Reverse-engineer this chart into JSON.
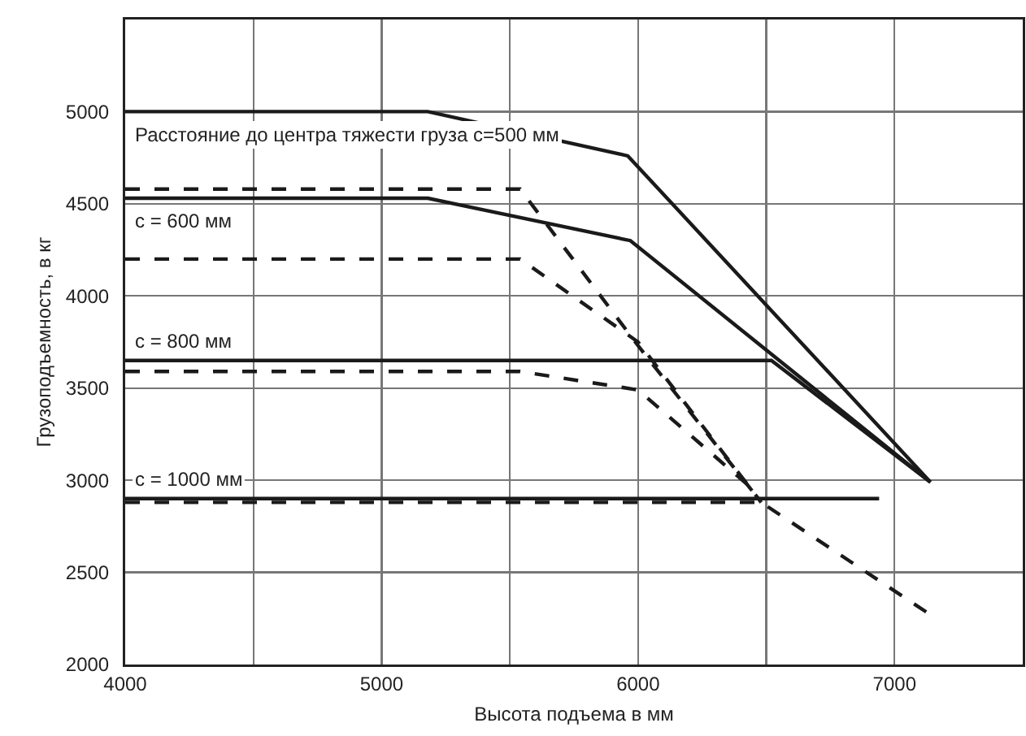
{
  "chart_data": {
    "type": "line",
    "xlabel": "Высота подъема в мм",
    "ylabel": "Грузоподъемность, в кг",
    "xlim": [
      4000,
      7500
    ],
    "ylim": [
      2000,
      5500
    ],
    "xticks": [
      4000,
      {
        "value": 4500,
        "label": null
      },
      5000,
      {
        "value": 5500,
        "label": null
      },
      6000,
      {
        "value": 6500,
        "label": null
      },
      7000
    ],
    "yticks": [
      2000,
      2500,
      3000,
      3500,
      4000,
      4500,
      5000,
      {
        "value": 5500,
        "label": null
      }
    ],
    "grid": true,
    "marker": "none",
    "series": [
      {
        "color": "#1a1a1a",
        "line_style": "solid",
        "x": [
          4000,
          5180,
          5960,
          7140
        ],
        "values": [
          5000,
          5000,
          4760,
          2990
        ]
      },
      {
        "color": "#1a1a1a",
        "line_style": "solid",
        "x": [
          4000,
          5180,
          5970,
          7140
        ],
        "values": [
          4530,
          4530,
          4300,
          2990
        ]
      },
      {
        "color": "#1a1a1a",
        "line_style": "solid",
        "x": [
          4000,
          6520,
          7140
        ],
        "values": [
          3650,
          3650,
          2990
        ]
      },
      {
        "color": "#1a1a1a",
        "line_style": "solid",
        "x": [
          4000,
          6940
        ],
        "values": [
          2900,
          2900
        ]
      },
      {
        "color": "#1a1a1a",
        "line_style": "dashed",
        "x": [
          4000,
          5540,
          6000,
          6480
        ],
        "values": [
          4580,
          4580,
          3730,
          2880
        ]
      },
      {
        "color": "#1a1a1a",
        "line_style": "dashed",
        "x": [
          4000,
          5540,
          6000,
          6480
        ],
        "values": [
          4200,
          4200,
          3750,
          2880
        ]
      },
      {
        "color": "#1a1a1a",
        "line_style": "dashed",
        "x": [
          4000,
          5540,
          6000,
          6440
        ],
        "values": [
          3590,
          3590,
          3490,
          2960
        ]
      },
      {
        "color": "#1a1a1a",
        "line_style": "dashed",
        "x": [
          4000,
          6480,
          7140
        ],
        "values": [
          2880,
          2880,
          2270
        ]
      }
    ],
    "annotations": [
      "Расстояние до центра тяжести груза c=500 мм",
      "c = 600 мм",
      "c = 800 мм",
      "c = 1000 мм"
    ]
  }
}
